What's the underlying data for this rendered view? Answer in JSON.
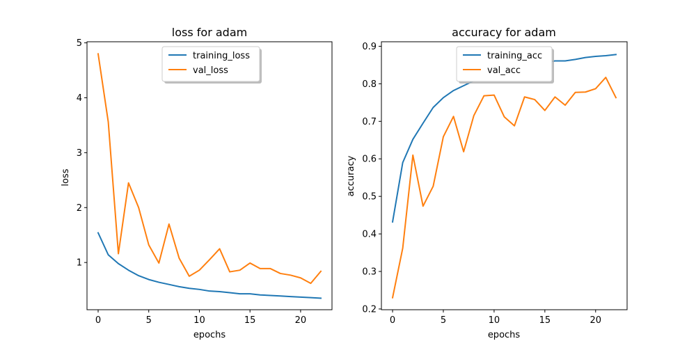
{
  "chart_data": [
    {
      "type": "line",
      "title": "loss for adam",
      "xlabel": "epochs",
      "ylabel": "loss",
      "xlim": [
        -1.1,
        23.1
      ],
      "ylim": [
        0.14,
        5.02
      ],
      "xticks": [
        0,
        5,
        10,
        15,
        20
      ],
      "yticks": [
        1,
        2,
        3,
        4,
        5
      ],
      "legend_position": "upper center",
      "x": [
        0,
        1,
        2,
        3,
        4,
        5,
        6,
        7,
        8,
        9,
        10,
        11,
        12,
        13,
        14,
        15,
        16,
        17,
        18,
        19,
        20,
        21,
        22
      ],
      "series": [
        {
          "name": "training_loss",
          "color": "#1f77b4",
          "values": [
            1.54,
            1.14,
            0.98,
            0.86,
            0.76,
            0.69,
            0.64,
            0.6,
            0.56,
            0.53,
            0.51,
            0.48,
            0.47,
            0.45,
            0.43,
            0.43,
            0.41,
            0.4,
            0.39,
            0.38,
            0.37,
            0.36,
            0.35
          ]
        },
        {
          "name": "val_loss",
          "color": "#ff7f0e",
          "values": [
            4.8,
            3.56,
            1.16,
            2.45,
            2.0,
            1.32,
            0.99,
            1.7,
            1.08,
            0.75,
            0.86,
            1.05,
            1.25,
            0.83,
            0.86,
            0.99,
            0.89,
            0.89,
            0.8,
            0.77,
            0.72,
            0.62,
            0.84
          ]
        }
      ]
    },
    {
      "type": "line",
      "title": "accuracy for adam",
      "xlabel": "epochs",
      "ylabel": "accuracy",
      "xlim": [
        -1.1,
        23.1
      ],
      "ylim": [
        0.198,
        0.912
      ],
      "xticks": [
        0,
        5,
        10,
        15,
        20
      ],
      "yticks": [
        0.2,
        0.3,
        0.4,
        0.5,
        0.6,
        0.7,
        0.8,
        0.9
      ],
      "legend_position": "upper center",
      "x": [
        0,
        1,
        2,
        3,
        4,
        5,
        6,
        7,
        8,
        9,
        10,
        11,
        12,
        13,
        14,
        15,
        16,
        17,
        18,
        19,
        20,
        21,
        22
      ],
      "series": [
        {
          "name": "training_acc",
          "color": "#1f77b4",
          "values": [
            0.432,
            0.59,
            0.652,
            0.695,
            0.737,
            0.763,
            0.782,
            0.795,
            0.808,
            0.818,
            0.826,
            0.834,
            0.84,
            0.846,
            0.851,
            0.857,
            0.861,
            0.861,
            0.865,
            0.87,
            0.873,
            0.875,
            0.878
          ]
        },
        {
          "name": "val_acc",
          "color": "#ff7f0e",
          "values": [
            0.23,
            0.362,
            0.61,
            0.474,
            0.527,
            0.659,
            0.713,
            0.619,
            0.715,
            0.768,
            0.77,
            0.712,
            0.688,
            0.765,
            0.758,
            0.729,
            0.765,
            0.743,
            0.777,
            0.778,
            0.787,
            0.817,
            0.763
          ]
        }
      ]
    }
  ]
}
